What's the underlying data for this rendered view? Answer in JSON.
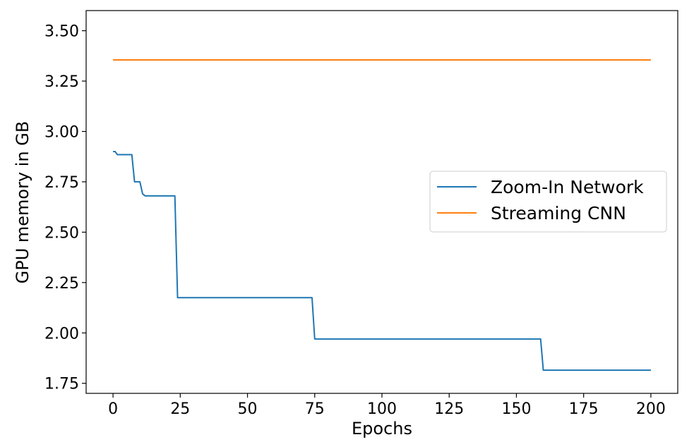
{
  "chart_data": {
    "type": "line",
    "xlabel": "Epochs",
    "ylabel": "GPU memory in GB",
    "xlim": [
      -10,
      210
    ],
    "ylim": [
      1.7,
      3.6
    ],
    "xticks": [
      0,
      25,
      50,
      75,
      100,
      125,
      150,
      175,
      200
    ],
    "yticks": [
      1.75,
      2.0,
      2.25,
      2.5,
      2.75,
      3.0,
      3.25,
      3.5
    ],
    "xtick_labels": [
      "0",
      "25",
      "50",
      "75",
      "100",
      "125",
      "150",
      "175",
      "200"
    ],
    "ytick_labels": [
      "1.75",
      "2.00",
      "2.25",
      "2.50",
      "2.75",
      "3.00",
      "3.25",
      "3.50"
    ],
    "grid": false,
    "legend_position": "center-right",
    "series": [
      {
        "name": "Zoom-In Network",
        "color": "#1f77b4",
        "points": [
          [
            0,
            2.9
          ],
          [
            0.8,
            2.9
          ],
          [
            1.6,
            2.885
          ],
          [
            7,
            2.885
          ],
          [
            8,
            2.75
          ],
          [
            10,
            2.75
          ],
          [
            11,
            2.69
          ],
          [
            12,
            2.68
          ],
          [
            23,
            2.68
          ],
          [
            24,
            2.175
          ],
          [
            74,
            2.175
          ],
          [
            75,
            1.97
          ],
          [
            159,
            1.97
          ],
          [
            160,
            1.815
          ],
          [
            200,
            1.815
          ]
        ]
      },
      {
        "name": "Streaming CNN",
        "color": "#ff7f0e",
        "points": [
          [
            0,
            3.355
          ],
          [
            200,
            3.355
          ]
        ]
      }
    ]
  }
}
